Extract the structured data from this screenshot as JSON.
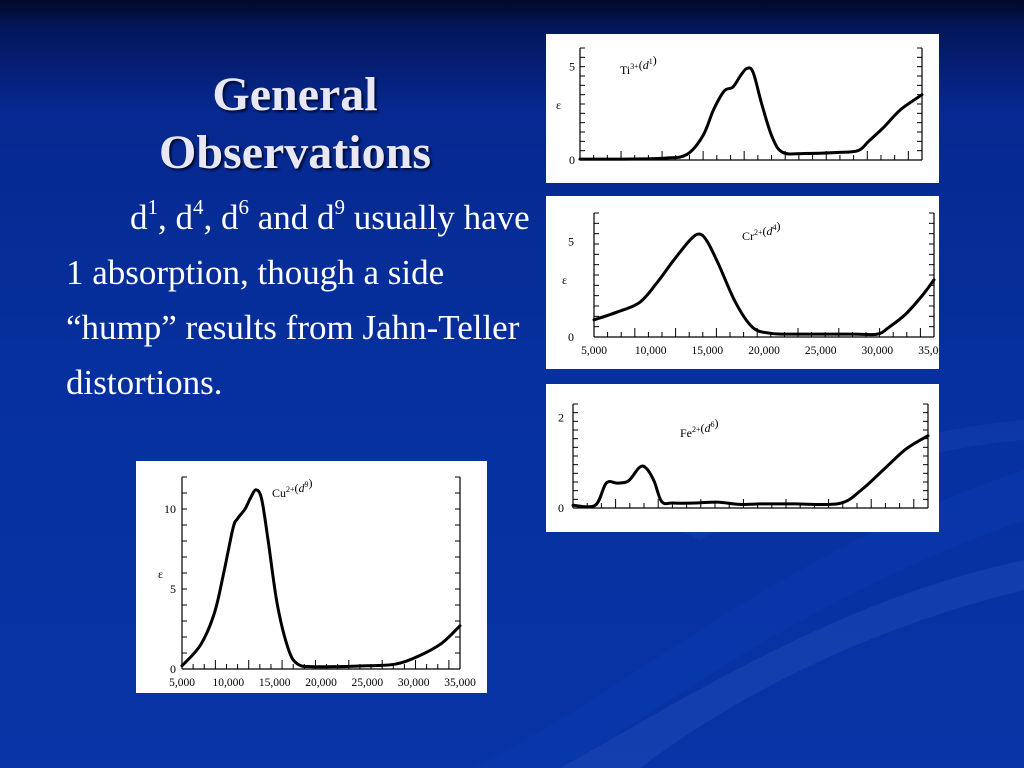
{
  "slide": {
    "title_lines": [
      "General",
      "Observations"
    ],
    "body": {
      "parts": [
        {
          "t": "d"
        },
        {
          "sup": "1"
        },
        {
          "t": ", d"
        },
        {
          "sup": "4"
        },
        {
          "t": ", d"
        },
        {
          "sup": "6"
        },
        {
          "t": " and d"
        },
        {
          "sup": "9"
        },
        {
          "t": " usually have 1 absorption, though a side “hump” results from Jahn-Teller distortions."
        }
      ]
    }
  },
  "chart_data": [
    {
      "id": "ti",
      "type": "line",
      "label": {
        "ion": "Ti",
        "charge": "3+",
        "config": "d",
        "n": "1"
      },
      "ylabel": "ε",
      "ylim": [
        0,
        6
      ],
      "yticks": [
        "5",
        "0"
      ],
      "ytick_values": [
        5,
        0
      ],
      "xlim": [
        4000,
        36000
      ],
      "xticks": [],
      "series": [
        {
          "x": [
            4000,
            8000,
            12000,
            14000,
            15500,
            16500,
            17500,
            18300,
            19000,
            19600,
            20200,
            21000,
            22000,
            23000,
            25000,
            28000,
            30000,
            31000,
            32500,
            34000,
            36000
          ],
          "y": [
            0.05,
            0.05,
            0.1,
            0.3,
            1.3,
            2.7,
            3.7,
            3.9,
            4.5,
            4.9,
            4.7,
            3.0,
            1.2,
            0.4,
            0.35,
            0.4,
            0.5,
            1.0,
            1.8,
            2.7,
            3.5
          ]
        }
      ]
    },
    {
      "id": "cr",
      "type": "line",
      "label": {
        "ion": "Cr",
        "charge": "2+",
        "config": "d",
        "n": "4"
      },
      "ylabel": "ε",
      "ylim": [
        0,
        6.5
      ],
      "yticks": [
        "5",
        "0"
      ],
      "ytick_values": [
        5,
        0
      ],
      "xlim": [
        5000,
        35000
      ],
      "xticks": [
        "5,000",
        "10,000",
        "15,000",
        "20,000",
        "25,000",
        "30,000",
        "35,000"
      ],
      "xtick_values": [
        5000,
        10000,
        15000,
        20000,
        25000,
        30000,
        35000
      ],
      "series": [
        {
          "x": [
            5000,
            7000,
            9000,
            10500,
            12000,
            13500,
            14300,
            15000,
            16000,
            17500,
            19000,
            20500,
            22000,
            25000,
            28000,
            30000,
            31000,
            32500,
            34000,
            35000
          ],
          "y": [
            0.9,
            1.3,
            1.8,
            2.8,
            4.0,
            5.1,
            5.4,
            5.0,
            3.8,
            1.8,
            0.5,
            0.2,
            0.15,
            0.15,
            0.15,
            0.15,
            0.5,
            1.2,
            2.2,
            3.0
          ]
        }
      ]
    },
    {
      "id": "fe",
      "type": "line",
      "label": {
        "ion": "Fe",
        "charge": "2+",
        "config": "d",
        "n": "6"
      },
      "ylabel": "",
      "ylim": [
        0,
        2.3
      ],
      "yticks": [
        "2",
        "0"
      ],
      "ytick_values": [
        2,
        0
      ],
      "xlim": [
        4000,
        36000
      ],
      "xticks": [],
      "series": [
        {
          "x": [
            4000,
            6000,
            7000,
            8000,
            9000,
            10000,
            10600,
            11300,
            12000,
            13000,
            15000,
            17000,
            19000,
            21000,
            24000,
            28000,
            30000,
            32000,
            34000,
            36000
          ],
          "y": [
            0.06,
            0.06,
            0.55,
            0.55,
            0.6,
            0.9,
            0.88,
            0.6,
            0.14,
            0.11,
            0.11,
            0.13,
            0.08,
            0.09,
            0.09,
            0.1,
            0.4,
            0.85,
            1.3,
            1.6
          ]
        }
      ]
    },
    {
      "id": "cu",
      "type": "line",
      "label": {
        "ion": "Cu",
        "charge": "2+",
        "config": "d",
        "n": "9"
      },
      "ylabel": "ε",
      "ylim": [
        0,
        12
      ],
      "yticks": [
        "10",
        "5",
        "0"
      ],
      "ytick_values": [
        10,
        5,
        0
      ],
      "xlim": [
        5000,
        35000
      ],
      "xticks": [
        "5,000",
        "10,000",
        "15,000",
        "20,000",
        "25,000",
        "30,000",
        "35,000"
      ],
      "xtick_values": [
        5000,
        10000,
        15000,
        20000,
        25000,
        30000,
        35000
      ],
      "series": [
        {
          "x": [
            5000,
            7000,
            8500,
            9500,
            10500,
            11000,
            11800,
            12400,
            13000,
            13600,
            14300,
            15300,
            16500,
            17500,
            19000,
            22000,
            25000,
            28000,
            30500,
            33000,
            35000
          ],
          "y": [
            0.2,
            1.5,
            3.5,
            6.0,
            8.8,
            9.4,
            10.0,
            10.7,
            11.2,
            10.6,
            8.0,
            4.0,
            1.2,
            0.3,
            0.15,
            0.15,
            0.2,
            0.3,
            0.8,
            1.6,
            2.7
          ]
        }
      ]
    }
  ]
}
